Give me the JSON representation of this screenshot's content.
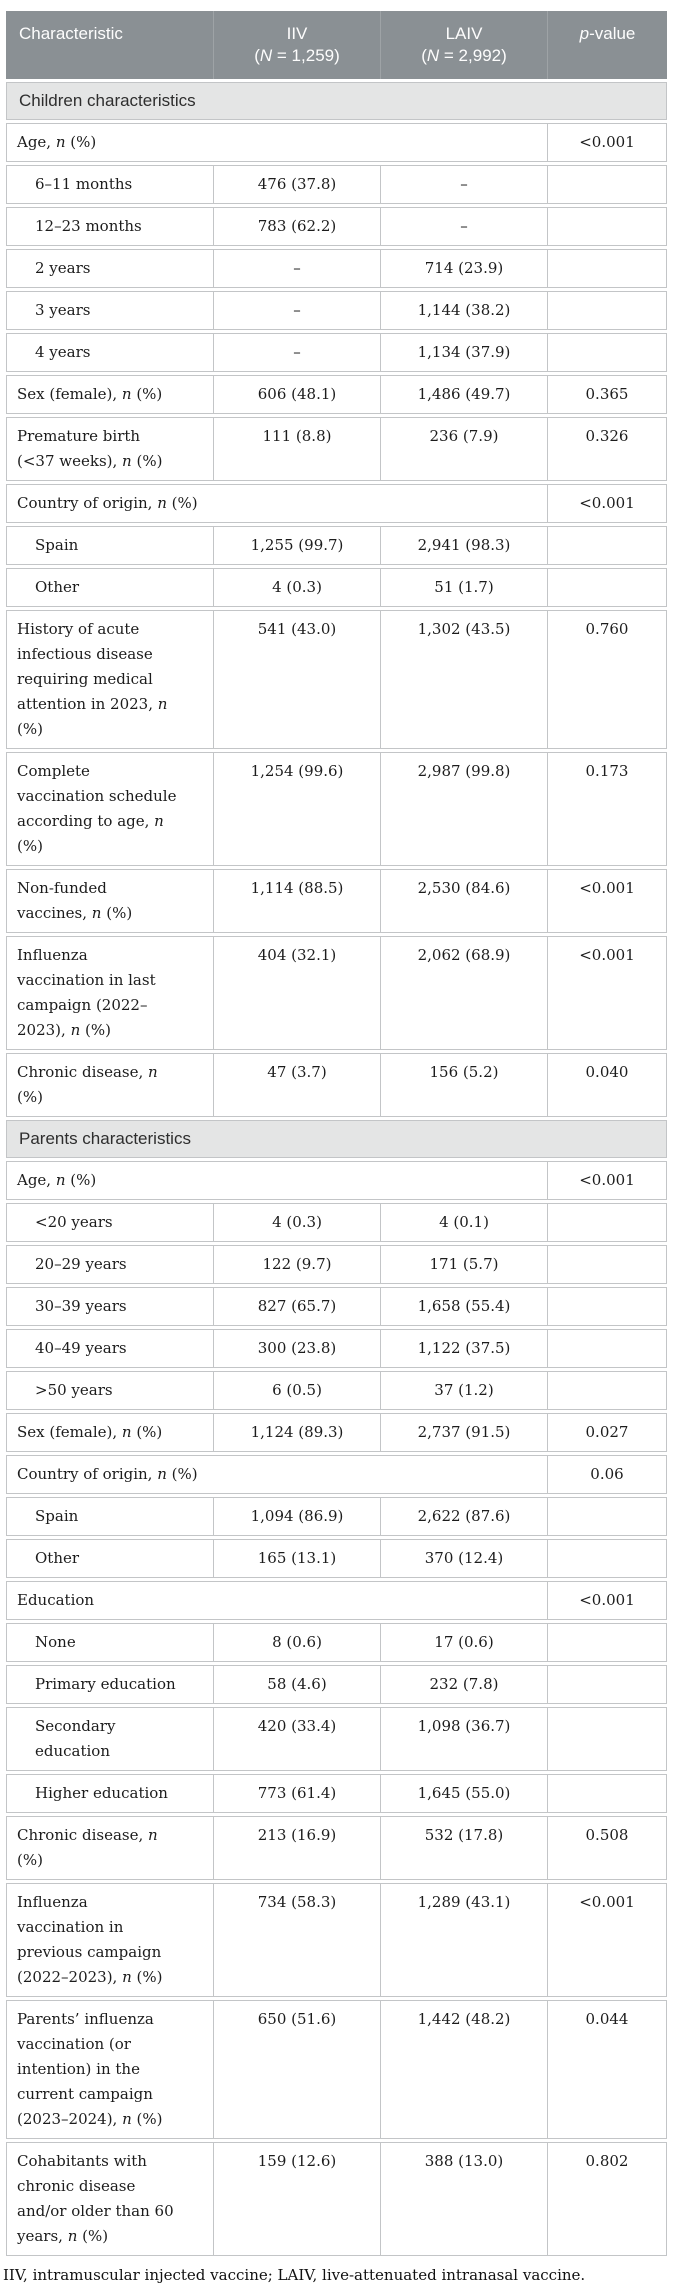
{
  "table": {
    "colors": {
      "header_bg": "#8a9094",
      "header_text": "#fdfdfd",
      "header_divider": "#9ea3a6",
      "section_bg": "#e4e5e5",
      "border": "#c3c5c7"
    },
    "header": {
      "characteristic": "Characteristic",
      "iiv_line1": "IIV",
      "iiv_line2": "(N = 1,259)",
      "laiv_line1": "LAIV",
      "laiv_line2": "(N = 2,992)",
      "pvalue": "p-value"
    },
    "rows": [
      {
        "type": "section",
        "label": "Children characteristics"
      },
      {
        "type": "span",
        "label": "Age, n (%)",
        "p": "<0.001"
      },
      {
        "type": "data",
        "indent": true,
        "label": "6–11 months",
        "iiv": "476 (37.8)",
        "laiv": "–",
        "p": ""
      },
      {
        "type": "data",
        "indent": true,
        "label": "12–23 months",
        "iiv": "783 (62.2)",
        "laiv": "–",
        "p": ""
      },
      {
        "type": "data",
        "indent": true,
        "label": "2 years",
        "iiv": "–",
        "laiv": "714 (23.9)",
        "p": ""
      },
      {
        "type": "data",
        "indent": true,
        "label": "3 years",
        "iiv": "–",
        "laiv": "1,144 (38.2)",
        "p": ""
      },
      {
        "type": "data",
        "indent": true,
        "label": "4 years",
        "iiv": "–",
        "laiv": "1,134 (37.9)",
        "p": ""
      },
      {
        "type": "data",
        "indent": false,
        "label": "Sex (female), n (%)",
        "iiv": "606 (48.1)",
        "laiv": "1,486 (49.7)",
        "p": "0.365"
      },
      {
        "type": "data",
        "indent": false,
        "label": "Premature birth (<37 weeks), n (%)",
        "iiv": "111 (8.8)",
        "laiv": "236 (7.9)",
        "p": "0.326"
      },
      {
        "type": "span",
        "label": "Country of origin, n (%)",
        "p": "<0.001"
      },
      {
        "type": "data",
        "indent": true,
        "label": "Spain",
        "iiv": "1,255 (99.7)",
        "laiv": "2,941 (98.3)",
        "p": ""
      },
      {
        "type": "data",
        "indent": true,
        "label": "Other",
        "iiv": "4 (0.3)",
        "laiv": "51 (1.7)",
        "p": ""
      },
      {
        "type": "data",
        "indent": false,
        "label": "History of acute infectious disease requiring medical attention in 2023, n (%)",
        "iiv": "541 (43.0)",
        "laiv": "1,302 (43.5)",
        "p": "0.760"
      },
      {
        "type": "data",
        "indent": false,
        "label": "Complete vaccination schedule according to age, n (%)",
        "iiv": "1,254 (99.6)",
        "laiv": "2,987 (99.8)",
        "p": "0.173"
      },
      {
        "type": "data",
        "indent": false,
        "label": "Non-funded vaccines, n (%)",
        "iiv": "1,114 (88.5)",
        "laiv": "2,530 (84.6)",
        "p": "<0.001"
      },
      {
        "type": "data",
        "indent": false,
        "label": "Influenza vaccination in last campaign (2022–2023), n (%)",
        "iiv": "404 (32.1)",
        "laiv": "2,062 (68.9)",
        "p": "<0.001"
      },
      {
        "type": "data",
        "indent": false,
        "label": "Chronic disease, n (%)",
        "iiv": "47 (3.7)",
        "laiv": "156 (5.2)",
        "p": "0.040"
      },
      {
        "type": "section",
        "label": "Parents characteristics"
      },
      {
        "type": "span",
        "label": "Age, n (%)",
        "p": "<0.001"
      },
      {
        "type": "data",
        "indent": true,
        "label": "<20 years",
        "iiv": "4 (0.3)",
        "laiv": "4 (0.1)",
        "p": ""
      },
      {
        "type": "data",
        "indent": true,
        "label": "20–29 years",
        "iiv": "122 (9.7)",
        "laiv": "171 (5.7)",
        "p": ""
      },
      {
        "type": "data",
        "indent": true,
        "label": "30–39 years",
        "iiv": "827 (65.7)",
        "laiv": "1,658 (55.4)",
        "p": ""
      },
      {
        "type": "data",
        "indent": true,
        "label": "40–49 years",
        "iiv": "300 (23.8)",
        "laiv": "1,122 (37.5)",
        "p": ""
      },
      {
        "type": "data",
        "indent": true,
        "label": ">50 years",
        "iiv": "6 (0.5)",
        "laiv": "37 (1.2)",
        "p": ""
      },
      {
        "type": "data",
        "indent": false,
        "label": "Sex (female), n (%)",
        "iiv": "1,124 (89.3)",
        "laiv": "2,737 (91.5)",
        "p": "0.027"
      },
      {
        "type": "span",
        "label": "Country of origin, n (%)",
        "p": "0.06"
      },
      {
        "type": "data",
        "indent": true,
        "label": "Spain",
        "iiv": "1,094 (86.9)",
        "laiv": "2,622 (87.6)",
        "p": ""
      },
      {
        "type": "data",
        "indent": true,
        "label": "Other",
        "iiv": "165 (13.1)",
        "laiv": "370 (12.4)",
        "p": ""
      },
      {
        "type": "span",
        "label": "Education",
        "p": "<0.001"
      },
      {
        "type": "data",
        "indent": true,
        "label": "None",
        "iiv": "8 (0.6)",
        "laiv": "17 (0.6)",
        "p": ""
      },
      {
        "type": "data",
        "indent": true,
        "label": "Primary education",
        "iiv": "58 (4.6)",
        "laiv": "232 (7.8)",
        "p": ""
      },
      {
        "type": "data",
        "indent": true,
        "label": "Secondary education",
        "iiv": "420 (33.4)",
        "laiv": "1,098 (36.7)",
        "p": ""
      },
      {
        "type": "data",
        "indent": true,
        "label": "Higher education",
        "iiv": "773 (61.4)",
        "laiv": "1,645 (55.0)",
        "p": ""
      },
      {
        "type": "data",
        "indent": false,
        "label": "Chronic disease, n (%)",
        "iiv": "213 (16.9)",
        "laiv": "532 (17.8)",
        "p": "0.508"
      },
      {
        "type": "data",
        "indent": false,
        "label": "Influenza vaccination in previous campaign (2022–2023), n (%)",
        "iiv": "734 (58.3)",
        "laiv": "1,289 (43.1)",
        "p": "<0.001"
      },
      {
        "type": "data",
        "indent": false,
        "label": "Parents’ influenza vaccination (or intention) in the current campaign (2023–2024), n (%)",
        "iiv": "650 (51.6)",
        "laiv": "1,442 (48.2)",
        "p": "0.044"
      },
      {
        "type": "data",
        "indent": false,
        "label": "Cohabitants with chronic disease and/or older than 60 years, n (%)",
        "iiv": "159 (12.6)",
        "laiv": "388 (13.0)",
        "p": "0.802"
      }
    ]
  },
  "footnote": "IIV, intramuscular injected vaccine; LAIV, live-attenuated intranasal vaccine."
}
